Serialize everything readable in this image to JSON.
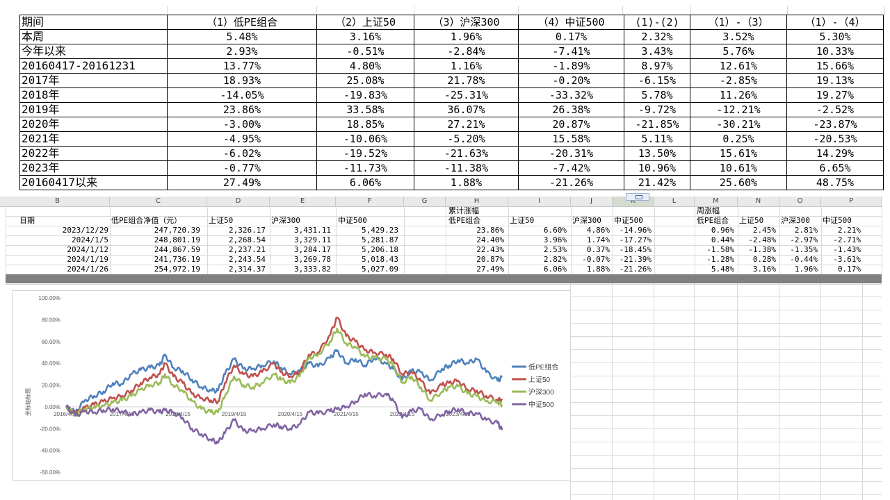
{
  "top_table": {
    "header": [
      "期间",
      "（1）低PE组合",
      "（2）上证50",
      "（3）沪深300",
      "（4）中证500",
      "(1)-(2)",
      "（1）-（3）",
      "（1）-（4）"
    ],
    "rows": [
      [
        "本周",
        "5.48%",
        "3.16%",
        "1.96%",
        "0.17%",
        "2.32%",
        "3.52%",
        "5.30%"
      ],
      [
        "今年以来",
        "2.93%",
        "-0.51%",
        "-2.84%",
        "-7.41%",
        "3.43%",
        "5.76%",
        "10.33%"
      ],
      [
        "20160417-20161231",
        "13.77%",
        "4.80%",
        "1.16%",
        "-1.89%",
        "8.97%",
        "12.61%",
        "15.66%"
      ],
      [
        "2017年",
        "18.93%",
        "25.08%",
        "21.78%",
        "-0.20%",
        "-6.15%",
        "-2.85%",
        "19.13%"
      ],
      [
        "2018年",
        "-14.05%",
        "-19.83%",
        "-25.31%",
        "-33.32%",
        "5.78%",
        "11.26%",
        "19.27%"
      ],
      [
        "2019年",
        "23.86%",
        "33.58%",
        "36.07%",
        "26.38%",
        "-9.72%",
        "-12.21%",
        "-2.52%"
      ],
      [
        "2020年",
        "-3.00%",
        "18.85%",
        "27.21%",
        "20.87%",
        "-21.85%",
        "-30.21%",
        "-23.87%"
      ],
      [
        "2021年",
        "-4.95%",
        "-10.06%",
        "-5.20%",
        "15.58%",
        "5.11%",
        "0.25%",
        "-20.53%"
      ],
      [
        "2022年",
        "-6.02%",
        "-19.52%",
        "-21.63%",
        "-20.31%",
        "13.50%",
        "15.61%",
        "14.29%"
      ],
      [
        "2023年",
        "-0.77%",
        "-11.73%",
        "-11.38%",
        "-7.42%",
        "10.96%",
        "10.61%",
        "6.65%"
      ],
      [
        "20160417以来",
        "27.49%",
        "6.06%",
        "1.88%",
        "-21.26%",
        "21.42%",
        "25.60%",
        "48.75%"
      ]
    ]
  },
  "sheet": {
    "column_letters": [
      "B",
      "C",
      "D",
      "E",
      "F",
      "G",
      "H",
      "I",
      "J",
      "K",
      "L",
      "M",
      "N",
      "O",
      "P"
    ],
    "selected_column": "K",
    "header_row1": {
      "h_label": "累计涨幅",
      "m_label": "周涨幅"
    },
    "header_row2": [
      "日期",
      "低PE组合净值（元）",
      "上证50",
      "沪深300",
      "中证500",
      "低PE组合",
      "上证50",
      "沪深300",
      "中证500",
      "低PE组合",
      "上证50",
      "沪深300",
      "中证500"
    ],
    "rows": [
      [
        "2023/12/29",
        "247,720.39",
        "2,326.17",
        "3,431.11",
        "5,429.23",
        "23.86%",
        "6.60%",
        "4.86%",
        "-14.96%",
        "0.96%",
        "2.45%",
        "2.81%",
        "2.21%"
      ],
      [
        "2024/1/5",
        "248,801.19",
        "2,268.54",
        "3,329.11",
        "5,281.87",
        "24.40%",
        "3.96%",
        "1.74%",
        "-17.27%",
        "0.44%",
        "-2.48%",
        "-2.97%",
        "-2.71%"
      ],
      [
        "2024/1/12",
        "244,867.59",
        "2,237.21",
        "3,284.17",
        "5,206.18",
        "22.43%",
        "2.53%",
        "0.37%",
        "-18.45%",
        "-1.58%",
        "-1.38%",
        "-1.35%",
        "-1.43%"
      ],
      [
        "2024/1/19",
        "241,736.19",
        "2,243.54",
        "3,269.78",
        "5,018.43",
        "20.87%",
        "2.82%",
        "-0.07%",
        "-21.39%",
        "-1.28%",
        "0.28%",
        "-0.44%",
        "-3.61%"
      ],
      [
        "2024/1/26",
        "254,972.19",
        "2,314.37",
        "3,333.82",
        "5,027.09",
        "27.49%",
        "6.06%",
        "1.88%",
        "-21.26%",
        "5.48%",
        "3.16%",
        "1.96%",
        "0.17%"
      ]
    ]
  },
  "chart_data": {
    "type": "line",
    "title": "",
    "xlabel": "",
    "ylabel": "坐标轴标题",
    "ylim": [
      -0.6,
      1.0
    ],
    "yticks": [
      "100.00%",
      "80.00%",
      "60.00%",
      "40.00%",
      "20.00%",
      "0.00%",
      "-20.00%",
      "-40.00%",
      "-60.00%"
    ],
    "xticks": [
      "2016/4/15",
      "2017/4/15",
      "2018/4/15",
      "2019/4/15",
      "2020/4/15",
      "2021/4/15",
      "2022/4/15",
      "2023/4/15"
    ],
    "x_range": [
      "2016-04-15",
      "2024-01-26"
    ],
    "legend_position": "right",
    "series": [
      {
        "name": "低PE组合",
        "color": "#4f81bd",
        "points": [
          [
            "2016-04-15",
            0.0
          ],
          [
            "2016-06-15",
            -0.05
          ],
          [
            "2016-08-15",
            0.06
          ],
          [
            "2016-10-15",
            0.1
          ],
          [
            "2016-12-15",
            0.14
          ],
          [
            "2017-02-15",
            0.22
          ],
          [
            "2017-04-15",
            0.21
          ],
          [
            "2017-06-15",
            0.3
          ],
          [
            "2017-08-15",
            0.34
          ],
          [
            "2017-10-15",
            0.36
          ],
          [
            "2017-12-15",
            0.38
          ],
          [
            "2018-01-20",
            0.48
          ],
          [
            "2018-03-15",
            0.36
          ],
          [
            "2018-05-15",
            0.33
          ],
          [
            "2018-07-15",
            0.25
          ],
          [
            "2018-09-15",
            0.18
          ],
          [
            "2018-11-15",
            0.15
          ],
          [
            "2018-12-31",
            0.15
          ],
          [
            "2019-02-15",
            0.3
          ],
          [
            "2019-04-15",
            0.44
          ],
          [
            "2019-06-15",
            0.35
          ],
          [
            "2019-08-15",
            0.35
          ],
          [
            "2019-10-15",
            0.38
          ],
          [
            "2019-12-31",
            0.42
          ],
          [
            "2020-02-15",
            0.36
          ],
          [
            "2020-04-15",
            0.3
          ],
          [
            "2020-06-15",
            0.33
          ],
          [
            "2020-08-15",
            0.4
          ],
          [
            "2020-10-15",
            0.37
          ],
          [
            "2020-12-31",
            0.45
          ],
          [
            "2021-02-15",
            0.52
          ],
          [
            "2021-04-15",
            0.4
          ],
          [
            "2021-06-15",
            0.44
          ],
          [
            "2021-08-15",
            0.38
          ],
          [
            "2021-10-15",
            0.45
          ],
          [
            "2021-12-31",
            0.4
          ],
          [
            "2022-02-15",
            0.35
          ],
          [
            "2022-04-15",
            0.25
          ],
          [
            "2022-06-15",
            0.33
          ],
          [
            "2022-08-15",
            0.32
          ],
          [
            "2022-10-15",
            0.24
          ],
          [
            "2022-12-31",
            0.35
          ],
          [
            "2023-02-15",
            0.38
          ],
          [
            "2023-04-15",
            0.43
          ],
          [
            "2023-06-15",
            0.4
          ],
          [
            "2023-08-15",
            0.44
          ],
          [
            "2023-10-15",
            0.32
          ],
          [
            "2023-12-29",
            0.24
          ],
          [
            "2024-01-26",
            0.27
          ]
        ]
      },
      {
        "name": "上证50",
        "color": "#c0504d",
        "points": [
          [
            "2016-04-15",
            0.0
          ],
          [
            "2016-06-15",
            -0.06
          ],
          [
            "2016-08-15",
            -0.01
          ],
          [
            "2016-10-15",
            0.02
          ],
          [
            "2016-12-15",
            0.05
          ],
          [
            "2017-02-15",
            0.08
          ],
          [
            "2017-04-15",
            0.1
          ],
          [
            "2017-06-15",
            0.15
          ],
          [
            "2017-08-15",
            0.22
          ],
          [
            "2017-10-15",
            0.27
          ],
          [
            "2017-12-15",
            0.3
          ],
          [
            "2018-01-20",
            0.4
          ],
          [
            "2018-03-15",
            0.28
          ],
          [
            "2018-05-15",
            0.22
          ],
          [
            "2018-07-15",
            0.12
          ],
          [
            "2018-09-15",
            0.08
          ],
          [
            "2018-11-15",
            0.06
          ],
          [
            "2018-12-31",
            0.05
          ],
          [
            "2019-02-15",
            0.22
          ],
          [
            "2019-04-15",
            0.38
          ],
          [
            "2019-06-15",
            0.3
          ],
          [
            "2019-08-15",
            0.28
          ],
          [
            "2019-10-15",
            0.32
          ],
          [
            "2019-12-31",
            0.4
          ],
          [
            "2020-02-15",
            0.32
          ],
          [
            "2020-04-15",
            0.28
          ],
          [
            "2020-06-15",
            0.32
          ],
          [
            "2020-08-15",
            0.48
          ],
          [
            "2020-10-15",
            0.5
          ],
          [
            "2020-12-31",
            0.66
          ],
          [
            "2021-02-15",
            0.82
          ],
          [
            "2021-04-15",
            0.65
          ],
          [
            "2021-06-15",
            0.6
          ],
          [
            "2021-08-15",
            0.52
          ],
          [
            "2021-10-15",
            0.5
          ],
          [
            "2021-12-31",
            0.48
          ],
          [
            "2022-02-15",
            0.44
          ],
          [
            "2022-04-15",
            0.3
          ],
          [
            "2022-06-15",
            0.32
          ],
          [
            "2022-08-15",
            0.24
          ],
          [
            "2022-10-15",
            0.12
          ],
          [
            "2022-12-31",
            0.2
          ],
          [
            "2023-02-15",
            0.22
          ],
          [
            "2023-04-15",
            0.24
          ],
          [
            "2023-06-15",
            0.16
          ],
          [
            "2023-08-15",
            0.15
          ],
          [
            "2023-10-15",
            0.1
          ],
          [
            "2023-12-29",
            0.066
          ],
          [
            "2024-01-26",
            0.061
          ]
        ]
      },
      {
        "name": "沪深300",
        "color": "#9bbb59",
        "points": [
          [
            "2016-04-15",
            0.0
          ],
          [
            "2016-06-15",
            -0.07
          ],
          [
            "2016-08-15",
            -0.02
          ],
          [
            "2016-10-15",
            0.0
          ],
          [
            "2016-12-15",
            0.01
          ],
          [
            "2017-02-15",
            0.04
          ],
          [
            "2017-04-15",
            0.06
          ],
          [
            "2017-06-15",
            0.1
          ],
          [
            "2017-08-15",
            0.16
          ],
          [
            "2017-10-15",
            0.2
          ],
          [
            "2017-12-15",
            0.22
          ],
          [
            "2018-01-20",
            0.3
          ],
          [
            "2018-03-15",
            0.2
          ],
          [
            "2018-05-15",
            0.15
          ],
          [
            "2018-07-15",
            0.05
          ],
          [
            "2018-09-15",
            -0.02
          ],
          [
            "2018-11-15",
            -0.05
          ],
          [
            "2018-12-31",
            -0.05
          ],
          [
            "2019-02-15",
            0.1
          ],
          [
            "2019-04-15",
            0.28
          ],
          [
            "2019-06-15",
            0.2
          ],
          [
            "2019-08-15",
            0.18
          ],
          [
            "2019-10-15",
            0.22
          ],
          [
            "2019-12-31",
            0.3
          ],
          [
            "2020-02-15",
            0.25
          ],
          [
            "2020-04-15",
            0.22
          ],
          [
            "2020-06-15",
            0.28
          ],
          [
            "2020-08-15",
            0.45
          ],
          [
            "2020-10-15",
            0.48
          ],
          [
            "2020-12-31",
            0.6
          ],
          [
            "2021-02-15",
            0.72
          ],
          [
            "2021-04-15",
            0.58
          ],
          [
            "2021-06-15",
            0.55
          ],
          [
            "2021-08-15",
            0.46
          ],
          [
            "2021-10-15",
            0.45
          ],
          [
            "2021-12-31",
            0.44
          ],
          [
            "2022-02-15",
            0.38
          ],
          [
            "2022-04-15",
            0.22
          ],
          [
            "2022-06-15",
            0.28
          ],
          [
            "2022-08-15",
            0.18
          ],
          [
            "2022-10-15",
            0.06
          ],
          [
            "2022-12-31",
            0.14
          ],
          [
            "2023-02-15",
            0.18
          ],
          [
            "2023-04-15",
            0.19
          ],
          [
            "2023-06-15",
            0.12
          ],
          [
            "2023-08-15",
            0.1
          ],
          [
            "2023-10-15",
            0.05
          ],
          [
            "2023-12-29",
            0.0486
          ],
          [
            "2024-01-26",
            0.0188
          ]
        ]
      },
      {
        "name": "中证500",
        "color": "#8064a2",
        "points": [
          [
            "2016-04-15",
            0.0
          ],
          [
            "2016-06-15",
            -0.08
          ],
          [
            "2016-08-15",
            -0.04
          ],
          [
            "2016-10-15",
            -0.05
          ],
          [
            "2016-12-15",
            -0.03
          ],
          [
            "2017-02-15",
            -0.02
          ],
          [
            "2017-04-15",
            -0.04
          ],
          [
            "2017-06-15",
            -0.07
          ],
          [
            "2017-08-15",
            -0.05
          ],
          [
            "2017-10-15",
            -0.03
          ],
          [
            "2017-12-15",
            -0.05
          ],
          [
            "2018-01-20",
            -0.03
          ],
          [
            "2018-03-15",
            -0.05
          ],
          [
            "2018-05-15",
            -0.1
          ],
          [
            "2018-07-15",
            -0.2
          ],
          [
            "2018-09-15",
            -0.25
          ],
          [
            "2018-11-15",
            -0.3
          ],
          [
            "2018-12-31",
            -0.33
          ],
          [
            "2019-02-15",
            -0.24
          ],
          [
            "2019-04-15",
            -0.12
          ],
          [
            "2019-06-15",
            -0.22
          ],
          [
            "2019-08-15",
            -0.22
          ],
          [
            "2019-10-15",
            -0.2
          ],
          [
            "2019-12-31",
            -0.16
          ],
          [
            "2020-02-15",
            -0.18
          ],
          [
            "2020-04-15",
            -0.2
          ],
          [
            "2020-06-15",
            -0.16
          ],
          [
            "2020-08-15",
            -0.05
          ],
          [
            "2020-10-15",
            -0.06
          ],
          [
            "2020-12-31",
            -0.04
          ],
          [
            "2021-02-15",
            -0.02
          ],
          [
            "2021-04-15",
            0.0
          ],
          [
            "2021-06-15",
            0.05
          ],
          [
            "2021-08-15",
            0.12
          ],
          [
            "2021-10-15",
            0.1
          ],
          [
            "2021-12-31",
            0.12
          ],
          [
            "2022-02-15",
            0.06
          ],
          [
            "2022-04-15",
            -0.1
          ],
          [
            "2022-06-15",
            -0.04
          ],
          [
            "2022-08-15",
            -0.02
          ],
          [
            "2022-10-15",
            -0.12
          ],
          [
            "2022-12-31",
            -0.07
          ],
          [
            "2023-02-15",
            -0.04
          ],
          [
            "2023-04-15",
            -0.02
          ],
          [
            "2023-06-15",
            -0.06
          ],
          [
            "2023-08-15",
            -0.06
          ],
          [
            "2023-10-15",
            -0.12
          ],
          [
            "2023-12-29",
            -0.1496
          ],
          [
            "2024-01-26",
            -0.2126
          ]
        ]
      }
    ]
  }
}
